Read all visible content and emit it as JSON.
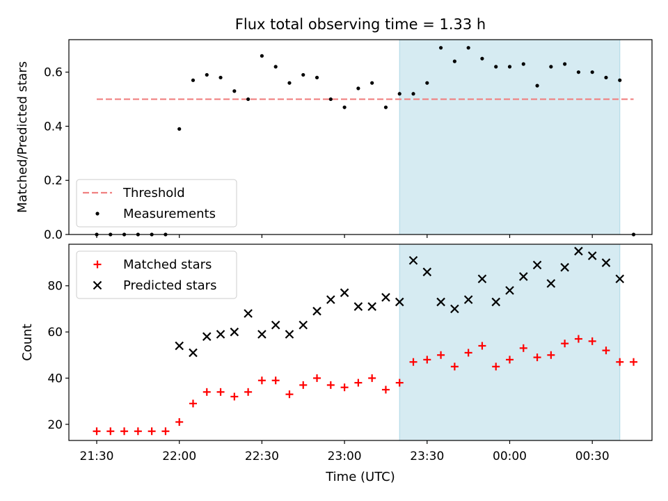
{
  "figure": {
    "title": "Flux total observing time = 1.33 h",
    "xlabel": "Time (UTC)",
    "x_ticks": [
      "21:30",
      "22:00",
      "22:30",
      "23:00",
      "23:30",
      "00:00",
      "00:30"
    ],
    "shaded_span": {
      "start": "23:20",
      "end": "00:40",
      "color": "#add8e6"
    }
  },
  "chart_data": [
    {
      "type": "scatter",
      "ylabel": "Matched/Predicted stars",
      "ylim": [
        0,
        0.72
      ],
      "y_ticks": [
        "0.0",
        "0.2",
        "0.4",
        "0.6"
      ],
      "legend_position": "lower-left",
      "threshold": {
        "name": "Threshold",
        "value": 0.5,
        "x_start": "21:30",
        "x_end": "00:45",
        "color": "#f08080"
      },
      "series": [
        {
          "name": "Measurements",
          "color": "#000000",
          "x": [
            "21:30",
            "21:35",
            "21:40",
            "21:45",
            "21:50",
            "21:55",
            "22:00",
            "22:05",
            "22:10",
            "22:15",
            "22:20",
            "22:25",
            "22:30",
            "22:35",
            "22:40",
            "22:45",
            "22:50",
            "22:55",
            "23:00",
            "23:05",
            "23:10",
            "23:15",
            "23:20",
            "23:25",
            "23:30",
            "23:35",
            "23:40",
            "23:45",
            "23:50",
            "23:55",
            "00:00",
            "00:05",
            "00:10",
            "00:15",
            "00:20",
            "00:25",
            "00:30",
            "00:35",
            "00:40",
            "00:45"
          ],
          "y": [
            0,
            0,
            0,
            0,
            0,
            0,
            0.39,
            0.57,
            0.59,
            0.58,
            0.53,
            0.5,
            0.66,
            0.62,
            0.56,
            0.59,
            0.58,
            0.5,
            0.47,
            0.54,
            0.56,
            0.47,
            0.52,
            0.52,
            0.56,
            0.69,
            0.64,
            0.69,
            0.65,
            0.62,
            0.62,
            0.63,
            0.55,
            0.62,
            0.63,
            0.6,
            0.6,
            0.58,
            0.57,
            0
          ]
        }
      ]
    },
    {
      "type": "scatter",
      "ylabel": "Count",
      "ylim": [
        13,
        98
      ],
      "y_ticks": [
        "20",
        "40",
        "60",
        "80"
      ],
      "legend_position": "upper-left",
      "series": [
        {
          "name": "Matched stars",
          "marker": "+",
          "color": "#ff0000",
          "x": [
            "21:30",
            "21:35",
            "21:40",
            "21:45",
            "21:50",
            "21:55",
            "22:00",
            "22:05",
            "22:10",
            "22:15",
            "22:20",
            "22:25",
            "22:30",
            "22:35",
            "22:40",
            "22:45",
            "22:50",
            "22:55",
            "23:00",
            "23:05",
            "23:10",
            "23:15",
            "23:20",
            "23:25",
            "23:30",
            "23:35",
            "23:40",
            "23:45",
            "23:50",
            "23:55",
            "00:00",
            "00:05",
            "00:10",
            "00:15",
            "00:20",
            "00:25",
            "00:30",
            "00:35",
            "00:40",
            "00:45"
          ],
          "y": [
            17,
            17,
            17,
            17,
            17,
            17,
            21,
            29,
            34,
            34,
            32,
            34,
            39,
            39,
            33,
            37,
            40,
            37,
            36,
            38,
            40,
            35,
            38,
            47,
            48,
            50,
            45,
            51,
            54,
            45,
            48,
            53,
            49,
            50,
            55,
            57,
            56,
            52,
            47,
            47
          ]
        },
        {
          "name": "Predicted stars",
          "marker": "x",
          "color": "#000000",
          "x": [
            "22:00",
            "22:05",
            "22:10",
            "22:15",
            "22:20",
            "22:25",
            "22:30",
            "22:35",
            "22:40",
            "22:45",
            "22:50",
            "22:55",
            "23:00",
            "23:05",
            "23:10",
            "23:15",
            "23:20",
            "23:25",
            "23:30",
            "23:35",
            "23:40",
            "23:45",
            "23:50",
            "23:55",
            "00:00",
            "00:05",
            "00:10",
            "00:15",
            "00:20",
            "00:25",
            "00:30",
            "00:35",
            "00:40"
          ],
          "y": [
            54,
            51,
            58,
            59,
            60,
            68,
            59,
            63,
            59,
            63,
            69,
            74,
            77,
            71,
            71,
            75,
            73,
            91,
            86,
            73,
            70,
            74,
            83,
            73,
            78,
            84,
            89,
            81,
            88,
            95,
            93,
            90,
            83
          ]
        }
      ]
    }
  ]
}
